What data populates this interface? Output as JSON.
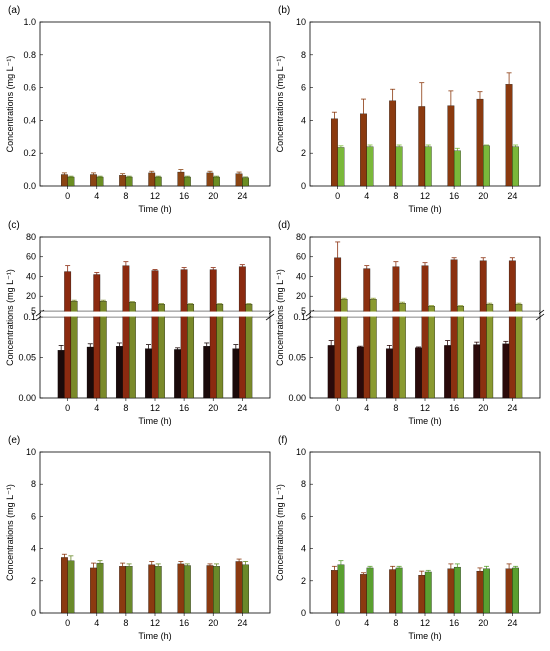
{
  "chart_data": [
    {
      "panel": "(a)",
      "type": "bar",
      "categories": [
        "0",
        "4",
        "8",
        "12",
        "16",
        "20",
        "24"
      ],
      "xlabel": "Time (h)",
      "ylabel": "Concentrations (mg L⁻¹)",
      "ylim": [
        0,
        1.0
      ],
      "yticks": [
        "0.0",
        "0.2",
        "0.4",
        "0.6",
        "0.8",
        "1.0"
      ],
      "series": [
        {
          "color": "#8b4513",
          "values": [
            0.07,
            0.07,
            0.065,
            0.08,
            0.085,
            0.08,
            0.075
          ],
          "errors": [
            0.01,
            0.01,
            0.01,
            0.01,
            0.015,
            0.01,
            0.01
          ]
        },
        {
          "color": "#6b8e23",
          "values": [
            0.055,
            0.055,
            0.055,
            0.055,
            0.055,
            0.055,
            0.05
          ],
          "errors": [
            0.005,
            0.005,
            0.005,
            0.005,
            0.005,
            0.005,
            0.005
          ]
        }
      ]
    },
    {
      "panel": "(b)",
      "type": "bar",
      "categories": [
        "0",
        "4",
        "8",
        "12",
        "16",
        "20",
        "24"
      ],
      "xlabel": "Time (h)",
      "ylabel": "Concentrations (mg L⁻¹)",
      "ylim": [
        0,
        10
      ],
      "yticks": [
        "0",
        "2",
        "4",
        "6",
        "8",
        "10"
      ],
      "series": [
        {
          "color": "#8b3a0f",
          "values": [
            4.1,
            4.4,
            5.2,
            4.85,
            4.9,
            5.3,
            6.2
          ],
          "errors": [
            0.4,
            0.9,
            0.7,
            1.45,
            0.9,
            0.45,
            0.7
          ]
        },
        {
          "color": "#7ab83a",
          "values": [
            2.35,
            2.4,
            2.4,
            2.4,
            2.15,
            2.45,
            2.4
          ],
          "errors": [
            0.1,
            0.1,
            0.1,
            0.05,
            0.15,
            0.05,
            0.05
          ]
        }
      ]
    },
    {
      "panel": "(c)",
      "type": "bar",
      "broken_y_axis": true,
      "categories": [
        "0",
        "4",
        "8",
        "12",
        "16",
        "20",
        "24"
      ],
      "xlabel": "Time (h)",
      "ylabel": "Concentrations (mg L⁻¹)",
      "upper_ylim": [
        5,
        80
      ],
      "upper_yticks": [
        "5",
        "20",
        "40",
        "60",
        "80"
      ],
      "lower_ylim": [
        0,
        0.1
      ],
      "lower_yticks": [
        "0.00",
        "0.05",
        "0.1"
      ],
      "series": [
        {
          "color": "#1a0a0a",
          "values": [
            0.059,
            0.063,
            0.064,
            0.061,
            0.06,
            0.064,
            0.061
          ],
          "errors": [
            0.006,
            0.004,
            0.004,
            0.005,
            0.002,
            0.002,
            0.005
          ]
        },
        {
          "color": "#8b2a10",
          "values": [
            45,
            42,
            51,
            46,
            47,
            47,
            50
          ],
          "errors": [
            6,
            2,
            4,
            1,
            2,
            2,
            2
          ]
        },
        {
          "color": "#7a8a2a",
          "values": [
            15,
            15,
            14,
            12,
            12,
            12,
            12
          ],
          "errors": [
            1,
            0.5,
            0.5,
            0.5,
            0.5,
            0.5,
            0.5
          ]
        }
      ]
    },
    {
      "panel": "(d)",
      "type": "bar",
      "broken_y_axis": true,
      "categories": [
        "0",
        "4",
        "8",
        "12",
        "16",
        "20",
        "24"
      ],
      "xlabel": "Time (h)",
      "ylabel": "Concentrations (mg L⁻¹)",
      "upper_ylim": [
        5,
        80
      ],
      "upper_yticks": [
        "5",
        "20",
        "40",
        "60",
        "80"
      ],
      "lower_ylim": [
        0,
        0.1
      ],
      "lower_yticks": [
        "0.00",
        "0.05",
        "0.1"
      ],
      "series": [
        {
          "color": "#2a0a0a",
          "values": [
            0.065,
            0.063,
            0.061,
            0.062,
            0.065,
            0.066,
            0.067
          ],
          "errors": [
            0.006,
            0.001,
            0.004,
            0.001,
            0.001,
            0.003,
            0.003
          ]
        },
        {
          "color": "#8b3010",
          "values": [
            59,
            48,
            50,
            51,
            57,
            56,
            56
          ],
          "errors": [
            16,
            3,
            5,
            3,
            2,
            3,
            7
          ]
        },
        {
          "color": "#8a9a30",
          "values": [
            17,
            17,
            13,
            10,
            10,
            12,
            12
          ],
          "errors": [
            1,
            1,
            1,
            0.5,
            1,
            1,
            1
          ]
        }
      ]
    },
    {
      "panel": "(e)",
      "type": "bar",
      "categories": [
        "0",
        "4",
        "8",
        "12",
        "16",
        "20",
        "24"
      ],
      "xlabel": "Time (h)",
      "ylabel": "Concentrations (mg L⁻¹)",
      "ylim": [
        0,
        10
      ],
      "yticks": [
        "0",
        "2",
        "4",
        "6",
        "8",
        "10"
      ],
      "series": [
        {
          "color": "#8b3a10",
          "values": [
            3.45,
            2.8,
            2.9,
            3.0,
            3.05,
            2.95,
            3.2
          ],
          "errors": [
            0.2,
            0.3,
            0.2,
            0.2,
            0.15,
            0.1,
            0.15
          ]
        },
        {
          "color": "#6a8a2a",
          "values": [
            3.25,
            3.1,
            2.9,
            2.9,
            2.95,
            2.9,
            3.0
          ],
          "errors": [
            0.3,
            0.15,
            0.15,
            0.15,
            0.1,
            0.1,
            0.2
          ]
        }
      ]
    },
    {
      "panel": "(f)",
      "type": "bar",
      "categories": [
        "0",
        "4",
        "8",
        "12",
        "16",
        "20",
        "24"
      ],
      "xlabel": "Time (h)",
      "ylabel": "Concentrations (mg L⁻¹)",
      "ylim": [
        0,
        10
      ],
      "yticks": [
        "0",
        "2",
        "4",
        "6",
        "8",
        "10"
      ],
      "series": [
        {
          "color": "#8b3a10",
          "values": [
            2.65,
            2.4,
            2.7,
            2.35,
            2.75,
            2.6,
            2.75
          ],
          "errors": [
            0.25,
            0.1,
            0.2,
            0.25,
            0.3,
            0.2,
            0.15
          ]
        },
        {
          "color": "#5aa030",
          "values": [
            3.0,
            2.8,
            2.8,
            2.55,
            2.85,
            2.75,
            2.8
          ],
          "errors": [
            0.25,
            0.1,
            0.3,
            0.1,
            0.2,
            0.15,
            0.1
          ]
        }
      ]
    }
  ]
}
